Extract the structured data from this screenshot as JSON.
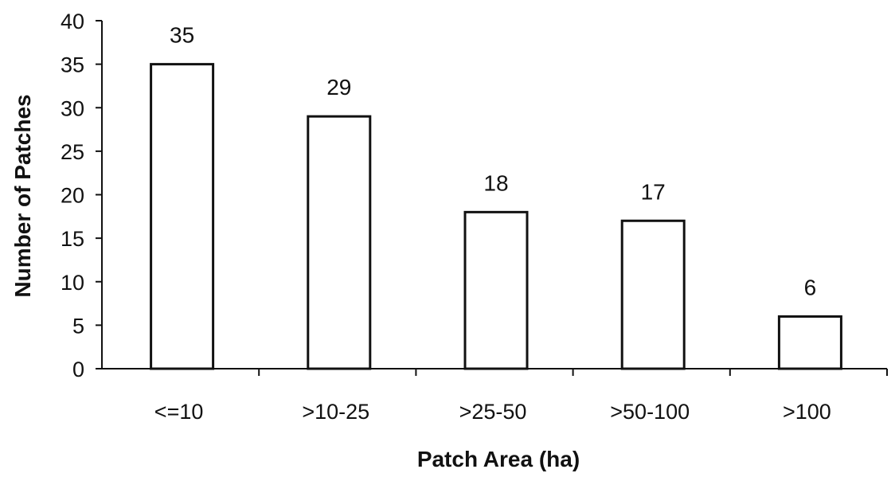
{
  "chart_data": {
    "type": "bar",
    "categories": [
      "<=10",
      ">10-25",
      ">25-50",
      ">50-100",
      ">100"
    ],
    "values": [
      35,
      29,
      18,
      17,
      6
    ],
    "data_labels": [
      "35",
      "29",
      "18",
      "17",
      "6"
    ],
    "xlabel": "Patch Area (ha)",
    "ylabel": "Number of Patches",
    "ylim": [
      0,
      40
    ],
    "yticks": [
      0,
      5,
      10,
      15,
      20,
      25,
      30,
      35,
      40
    ],
    "grid": false,
    "legend": "none",
    "colors": {
      "bar_fill": "#ffffff",
      "bar_stroke": "#111111",
      "text": "#111111"
    }
  }
}
